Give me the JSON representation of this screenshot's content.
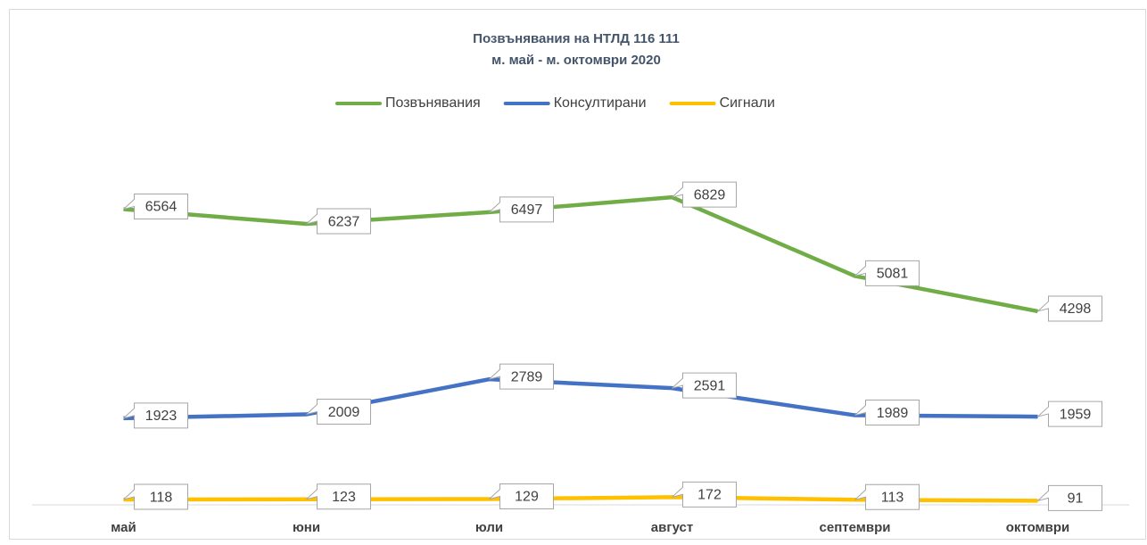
{
  "chart_data": {
    "type": "line",
    "title": "Позвънявания на НТЛД 116 111",
    "subtitle": "м. май - м. октомври 2020",
    "categories": [
      "май",
      "юни",
      "юли",
      "август",
      "септември",
      "октомври"
    ],
    "series": [
      {
        "name": "Позвънявания",
        "color": "#70ad47",
        "values": [
          6564,
          6237,
          6497,
          6829,
          5081,
          4298
        ]
      },
      {
        "name": "Консултирани",
        "color": "#4472c4",
        "values": [
          1923,
          2009,
          2789,
          2591,
          1989,
          1959
        ]
      },
      {
        "name": "Сигнали",
        "color": "#ffc000",
        "values": [
          118,
          123,
          129,
          172,
          113,
          91
        ]
      }
    ],
    "ylim": [
      0,
      8000
    ],
    "legend": "top"
  }
}
